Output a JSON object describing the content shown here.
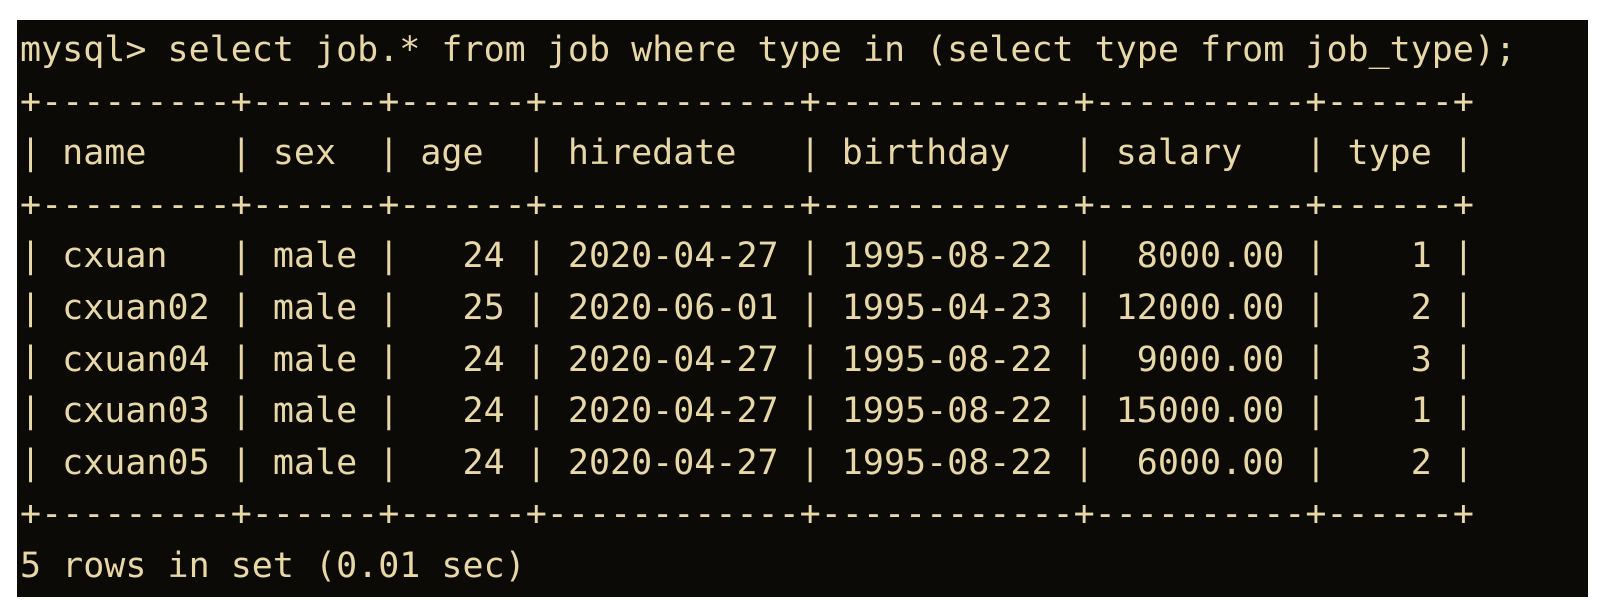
{
  "colors": {
    "page_bg": "#ffffff",
    "terminal_bg": "#0c0a07",
    "text": "#e8d8a6"
  },
  "terminal": {
    "prompt": "mysql>",
    "query": "select job.* from job where type in (select type from job_type);",
    "status": "5 rows in set (0.01 sec)",
    "result_table": {
      "columns": [
        "name",
        "sex",
        "age",
        "hiredate",
        "birthday",
        "salary",
        "type"
      ],
      "rows": [
        [
          "cxuan",
          "male",
          "24",
          "2020-04-27",
          "1995-08-22",
          "8000.00",
          "1"
        ],
        [
          "cxuan02",
          "male",
          "25",
          "2020-06-01",
          "1995-04-23",
          "12000.00",
          "2"
        ],
        [
          "cxuan04",
          "male",
          "24",
          "2020-04-27",
          "1995-08-22",
          "9000.00",
          "3"
        ],
        [
          "cxuan03",
          "male",
          "24",
          "2020-04-27",
          "1995-08-22",
          "15000.00",
          "1"
        ],
        [
          "cxuan05",
          "male",
          "24",
          "2020-04-27",
          "1995-08-22",
          "6000.00",
          "2"
        ]
      ]
    },
    "lines": [
      {
        "name": "query-line",
        "text": "mysql> select job.* from job where type in (select type from job_type);"
      },
      {
        "name": "table-border-top",
        "text": "+---------+------+------+------------+------------+----------+------+"
      },
      {
        "name": "table-header-row",
        "text": "| name    | sex  | age  | hiredate   | birthday   | salary   | type |"
      },
      {
        "name": "table-border-mid",
        "text": "+---------+------+------+------------+------------+----------+------+"
      },
      {
        "name": "table-row-1",
        "text": "| cxuan   | male |   24 | 2020-04-27 | 1995-08-22 |  8000.00 |    1 |"
      },
      {
        "name": "table-row-2",
        "text": "| cxuan02 | male |   25 | 2020-06-01 | 1995-04-23 | 12000.00 |    2 |"
      },
      {
        "name": "table-row-3",
        "text": "| cxuan04 | male |   24 | 2020-04-27 | 1995-08-22 |  9000.00 |    3 |"
      },
      {
        "name": "table-row-4",
        "text": "| cxuan03 | male |   24 | 2020-04-27 | 1995-08-22 | 15000.00 |    1 |"
      },
      {
        "name": "table-row-5",
        "text": "| cxuan05 | male |   24 | 2020-04-27 | 1995-08-22 |  6000.00 |    2 |"
      },
      {
        "name": "table-border-bottom",
        "text": "+---------+------+------+------------+------------+----------+------+"
      },
      {
        "name": "status-line",
        "text": "5 rows in set (0.01 sec)"
      }
    ]
  }
}
